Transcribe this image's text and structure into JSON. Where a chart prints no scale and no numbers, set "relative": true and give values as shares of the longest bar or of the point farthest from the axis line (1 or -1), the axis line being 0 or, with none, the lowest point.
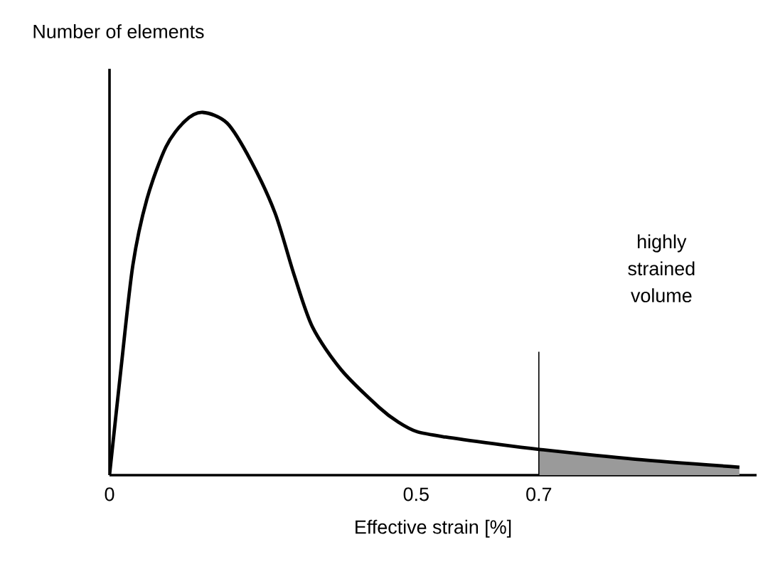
{
  "chart_data": {
    "type": "line",
    "relative": true,
    "xlabel": "Effective strain [%]",
    "ylabel": "Number of elements",
    "x": [
      0,
      0.0185,
      0.038,
      0.061,
      0.092,
      0.123,
      0.152,
      0.192,
      0.231,
      0.27,
      0.301,
      0.331,
      0.378,
      0.44,
      0.471,
      0.501,
      0.548,
      0.625,
      0.701,
      0.857,
      1.027
    ],
    "series": [
      {
        "type": "area",
        "color": "#9a9a9a",
        "x": [
          0.7,
          0.78,
          0.857,
          0.94,
          1.027
        ],
        "values": [
          0.071,
          0.057,
          0.044,
          0.033,
          0.022
        ]
      },
      {
        "color": "#000000",
        "values": [
          0,
          0.29,
          0.578,
          0.761,
          0.905,
          0.976,
          1,
          0.97,
          0.865,
          0.722,
          0.552,
          0.408,
          0.29,
          0.186,
          0.146,
          0.12,
          0.105,
          0.087,
          0.071,
          0.044,
          0.022
        ]
      }
    ],
    "xlim": [
      0,
      1.055
    ],
    "xticks": [
      0,
      0.5,
      0.7
    ],
    "ref_lines": [
      {
        "axis": "x",
        "value": 0.7,
        "color": "#000000"
      }
    ],
    "annotations": [
      "highly strained volume"
    ]
  }
}
